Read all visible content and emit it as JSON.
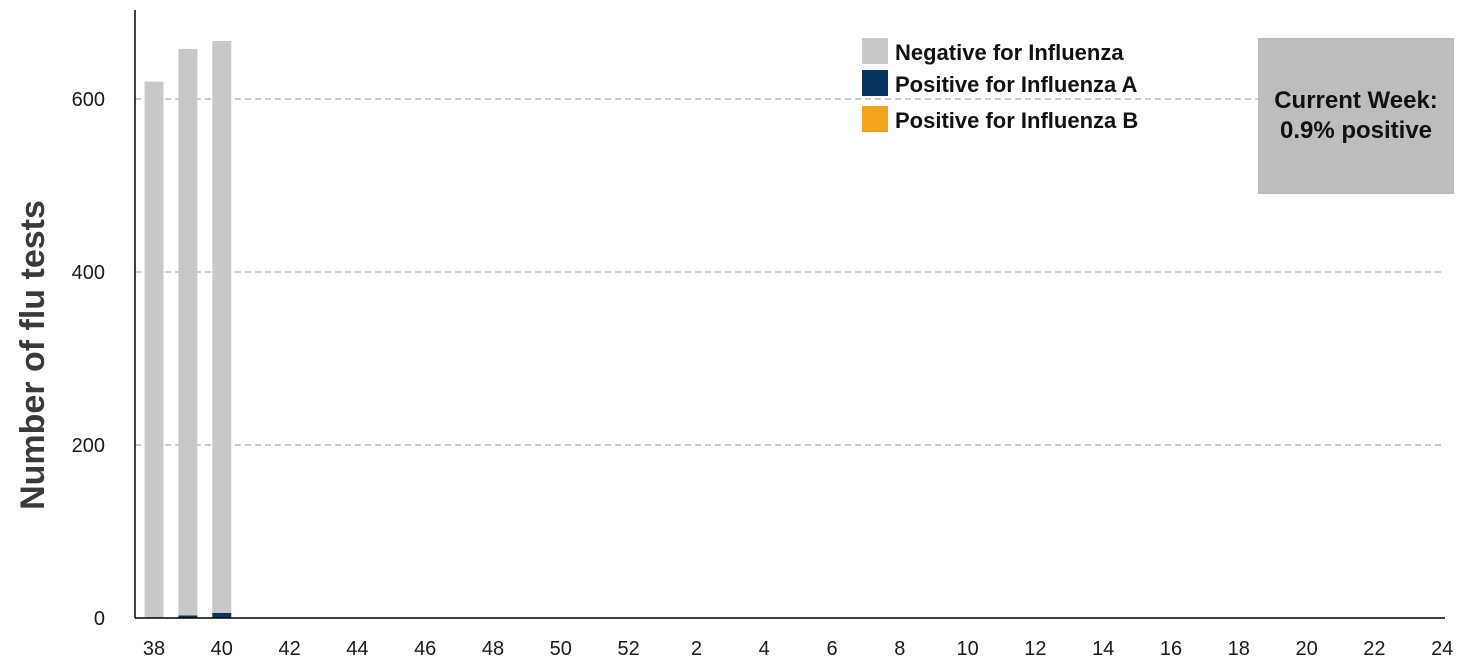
{
  "colors": {
    "negative": "#c8c8c8",
    "positive_a": "#0b3561",
    "positive_b": "#f5a31c",
    "grid": "#bbbbbb",
    "axis": "#000000",
    "callout_bg": "#bdbdbd"
  },
  "callout": {
    "text": "Current Week: 0.9% positive"
  },
  "chart_data": {
    "type": "bar",
    "stacked": true,
    "ylabel": "Number of flu tests",
    "xlabel": "",
    "ylim": [
      0,
      700
    ],
    "yticks": [
      0,
      200,
      400,
      600
    ],
    "grid": "horizontal dashed",
    "legend_position": "top-right",
    "categories": [
      "38",
      "39",
      "40",
      "41",
      "42",
      "43",
      "44",
      "45",
      "46",
      "47",
      "48",
      "49",
      "50",
      "51",
      "52",
      "1",
      "2",
      "3",
      "4",
      "5",
      "6",
      "7",
      "8",
      "9",
      "10",
      "11",
      "12",
      "13",
      "14",
      "15",
      "16",
      "17",
      "18",
      "19",
      "20",
      "21",
      "22",
      "23",
      "24"
    ],
    "xtick_labels": [
      "38",
      "40",
      "42",
      "44",
      "46",
      "48",
      "50",
      "52",
      "2",
      "4",
      "6",
      "8",
      "10",
      "12",
      "14",
      "16",
      "18",
      "20",
      "22",
      "24"
    ],
    "series": [
      {
        "name": "Negative for Influenza",
        "color": "#c8c8c8",
        "values": [
          620,
          655,
          661,
          0,
          0,
          0,
          0,
          0,
          0,
          0,
          0,
          0,
          0,
          0,
          0,
          0,
          0,
          0,
          0,
          0,
          0,
          0,
          0,
          0,
          0,
          0,
          0,
          0,
          0,
          0,
          0,
          0,
          0,
          0,
          0,
          0,
          0,
          0,
          0
        ]
      },
      {
        "name": "Positive for Influenza A",
        "color": "#0b3561",
        "values": [
          0,
          3,
          6,
          0,
          0,
          0,
          0,
          0,
          0,
          0,
          0,
          0,
          0,
          0,
          0,
          0,
          0,
          0,
          0,
          0,
          0,
          0,
          0,
          0,
          0,
          0,
          0,
          0,
          0,
          0,
          0,
          0,
          0,
          0,
          0,
          0,
          0,
          0,
          0
        ]
      },
      {
        "name": "Positive for Influenza B",
        "color": "#f5a31c",
        "values": [
          0,
          0,
          0,
          0,
          0,
          0,
          0,
          0,
          0,
          0,
          0,
          0,
          0,
          0,
          0,
          0,
          0,
          0,
          0,
          0,
          0,
          0,
          0,
          0,
          0,
          0,
          0,
          0,
          0,
          0,
          0,
          0,
          0,
          0,
          0,
          0,
          0,
          0,
          0
        ]
      }
    ]
  }
}
